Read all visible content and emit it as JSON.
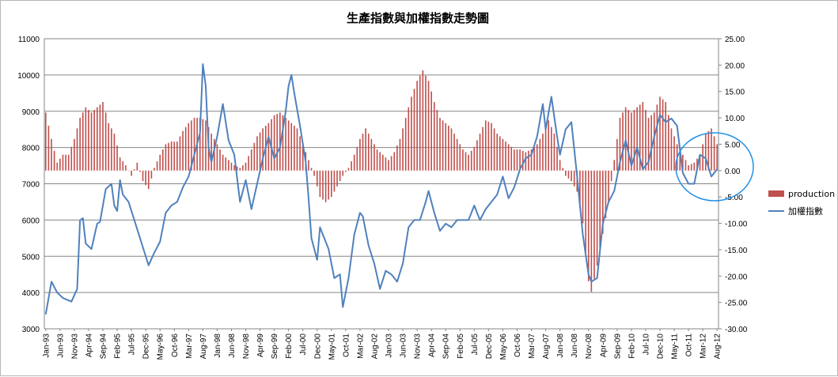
{
  "chart_data": {
    "type": "bar+line",
    "title": "生產指數與加權指數走勢圖",
    "left_axis": {
      "min": 3000,
      "max": 11000,
      "step": 1000,
      "series": "加權指數"
    },
    "right_axis": {
      "min": -30,
      "max": 25,
      "step": 5,
      "series": "production",
      "decimals": 2
    },
    "x_axis": {
      "start": "1993-01",
      "end": "2012-08",
      "tick_every_months": 5,
      "rotation": -90
    },
    "gridlines": true,
    "legend": {
      "position": "right",
      "entries": [
        {
          "name": "production",
          "kind": "bar",
          "color": "#c0504d"
        },
        {
          "name": "加權指數",
          "kind": "line",
          "color": "#4f81bd"
        }
      ]
    },
    "annotations": [
      {
        "kind": "ellipse",
        "color": "#1f8fe6",
        "around": "2012 data"
      }
    ],
    "series": [
      {
        "name": "加權指數",
        "axis": "left",
        "color": "#4f81bd",
        "anchors": [
          [
            "1993-01",
            3400
          ],
          [
            "1993-03",
            4300
          ],
          [
            "1993-05",
            4000
          ],
          [
            "1993-07",
            3850
          ],
          [
            "1993-10",
            3750
          ],
          [
            "1993-12",
            4100
          ],
          [
            "1994-01",
            5990
          ],
          [
            "1994-02",
            6050
          ],
          [
            "1994-03",
            5350
          ],
          [
            "1994-05",
            5200
          ],
          [
            "1994-07",
            5900
          ],
          [
            "1994-08",
            5950
          ],
          [
            "1994-10",
            6850
          ],
          [
            "1994-12",
            7000
          ],
          [
            "1995-01",
            6400
          ],
          [
            "1995-02",
            6250
          ],
          [
            "1995-03",
            7100
          ],
          [
            "1995-04",
            6700
          ],
          [
            "1995-06",
            6500
          ],
          [
            "1995-08",
            6000
          ],
          [
            "1995-11",
            5250
          ],
          [
            "1996-01",
            4750
          ],
          [
            "1996-03",
            5100
          ],
          [
            "1996-05",
            5400
          ],
          [
            "1996-07",
            6200
          ],
          [
            "1996-09",
            6400
          ],
          [
            "1996-11",
            6500
          ],
          [
            "1997-01",
            6900
          ],
          [
            "1997-03",
            7200
          ],
          [
            "1997-05",
            7800
          ],
          [
            "1997-07",
            8400
          ],
          [
            "1997-08",
            10300
          ],
          [
            "1997-09",
            9700
          ],
          [
            "1997-10",
            8000
          ],
          [
            "1997-11",
            7600
          ],
          [
            "1998-01",
            8300
          ],
          [
            "1998-03",
            9200
          ],
          [
            "1998-05",
            8200
          ],
          [
            "1998-07",
            7800
          ],
          [
            "1998-09",
            6500
          ],
          [
            "1998-11",
            7100
          ],
          [
            "1999-01",
            6300
          ],
          [
            "1999-03",
            7000
          ],
          [
            "1999-05",
            7700
          ],
          [
            "1999-07",
            8300
          ],
          [
            "1999-09",
            7700
          ],
          [
            "1999-11",
            8000
          ],
          [
            "2000-01",
            9000
          ],
          [
            "2000-02",
            9700
          ],
          [
            "2000-03",
            10000
          ],
          [
            "2000-04",
            9500
          ],
          [
            "2000-06",
            8600
          ],
          [
            "2000-08",
            7600
          ],
          [
            "2000-09",
            6600
          ],
          [
            "2000-10",
            5500
          ],
          [
            "2000-12",
            4900
          ],
          [
            "2001-01",
            5800
          ],
          [
            "2001-02",
            5600
          ],
          [
            "2001-04",
            5200
          ],
          [
            "2001-06",
            4400
          ],
          [
            "2001-08",
            4500
          ],
          [
            "2001-09",
            3600
          ],
          [
            "2001-11",
            4400
          ],
          [
            "2002-01",
            5600
          ],
          [
            "2002-03",
            6200
          ],
          [
            "2002-04",
            6100
          ],
          [
            "2002-06",
            5300
          ],
          [
            "2002-08",
            4800
          ],
          [
            "2002-10",
            4100
          ],
          [
            "2002-12",
            4600
          ],
          [
            "2003-02",
            4500
          ],
          [
            "2003-04",
            4300
          ],
          [
            "2003-06",
            4800
          ],
          [
            "2003-08",
            5800
          ],
          [
            "2003-10",
            6000
          ],
          [
            "2003-12",
            6000
          ],
          [
            "2004-02",
            6500
          ],
          [
            "2004-03",
            6800
          ],
          [
            "2004-05",
            6200
          ],
          [
            "2004-07",
            5700
          ],
          [
            "2004-09",
            5900
          ],
          [
            "2004-11",
            5800
          ],
          [
            "2005-01",
            6000
          ],
          [
            "2005-03",
            6000
          ],
          [
            "2005-05",
            6000
          ],
          [
            "2005-07",
            6400
          ],
          [
            "2005-09",
            6000
          ],
          [
            "2005-11",
            6300
          ],
          [
            "2006-01",
            6500
          ],
          [
            "2006-03",
            6700
          ],
          [
            "2006-05",
            7200
          ],
          [
            "2006-07",
            6600
          ],
          [
            "2006-09",
            6900
          ],
          [
            "2006-11",
            7400
          ],
          [
            "2007-01",
            7700
          ],
          [
            "2007-03",
            7800
          ],
          [
            "2007-05",
            8300
          ],
          [
            "2007-07",
            9200
          ],
          [
            "2007-08",
            8500
          ],
          [
            "2007-10",
            9400
          ],
          [
            "2007-12",
            8300
          ],
          [
            "2008-01",
            7800
          ],
          [
            "2008-03",
            8500
          ],
          [
            "2008-05",
            8700
          ],
          [
            "2008-07",
            7200
          ],
          [
            "2008-09",
            5600
          ],
          [
            "2008-11",
            4500
          ],
          [
            "2008-12",
            4300
          ],
          [
            "2009-02",
            4400
          ],
          [
            "2009-04",
            5900
          ],
          [
            "2009-06",
            6500
          ],
          [
            "2009-08",
            6800
          ],
          [
            "2009-10",
            7600
          ],
          [
            "2009-12",
            8200
          ],
          [
            "2010-02",
            7500
          ],
          [
            "2010-04",
            8000
          ],
          [
            "2010-06",
            7400
          ],
          [
            "2010-08",
            7600
          ],
          [
            "2010-10",
            8300
          ],
          [
            "2010-12",
            8900
          ],
          [
            "2011-02",
            8700
          ],
          [
            "2011-04",
            8800
          ],
          [
            "2011-06",
            8600
          ],
          [
            "2011-08",
            7300
          ],
          [
            "2011-10",
            7000
          ],
          [
            "2011-12",
            7000
          ],
          [
            "2012-02",
            7800
          ],
          [
            "2012-04",
            7700
          ],
          [
            "2012-06",
            7200
          ],
          [
            "2012-08",
            7400
          ]
        ]
      },
      {
        "name": "production",
        "axis": "right",
        "color": "#c0504d",
        "anchors": [
          [
            "1993-01",
            11
          ],
          [
            "1993-03",
            6
          ],
          [
            "1993-05",
            1.5
          ],
          [
            "1993-07",
            3
          ],
          [
            "1993-09",
            3
          ],
          [
            "1993-11",
            6
          ],
          [
            "1994-01",
            10
          ],
          [
            "1994-03",
            12
          ],
          [
            "1994-05",
            11
          ],
          [
            "1994-07",
            12
          ],
          [
            "1994-09",
            13
          ],
          [
            "1994-11",
            9
          ],
          [
            "1995-01",
            7
          ],
          [
            "1995-03",
            2.5
          ],
          [
            "1995-05",
            1
          ],
          [
            "1995-07",
            -1
          ],
          [
            "1995-09",
            1.5
          ],
          [
            "1995-11",
            -2
          ],
          [
            "1996-01",
            -3.5
          ],
          [
            "1996-03",
            0.5
          ],
          [
            "1996-05",
            3
          ],
          [
            "1996-07",
            5
          ],
          [
            "1996-09",
            5.5
          ],
          [
            "1996-11",
            5.5
          ],
          [
            "1997-01",
            7.5
          ],
          [
            "1997-03",
            9
          ],
          [
            "1997-05",
            10
          ],
          [
            "1997-07",
            10
          ],
          [
            "1997-09",
            9.5
          ],
          [
            "1997-11",
            7
          ],
          [
            "1998-01",
            5
          ],
          [
            "1998-03",
            3
          ],
          [
            "1998-05",
            2
          ],
          [
            "1998-07",
            1
          ],
          [
            "1998-09",
            0.5
          ],
          [
            "1998-11",
            1.5
          ],
          [
            "1999-01",
            4
          ],
          [
            "1999-03",
            6.5
          ],
          [
            "1999-05",
            8
          ],
          [
            "1999-07",
            9
          ],
          [
            "1999-09",
            10.5
          ],
          [
            "1999-11",
            11
          ],
          [
            "2000-01",
            10
          ],
          [
            "2000-03",
            9
          ],
          [
            "2000-05",
            8
          ],
          [
            "2000-07",
            5
          ],
          [
            "2000-09",
            2
          ],
          [
            "2000-11",
            -1
          ],
          [
            "2001-01",
            -5
          ],
          [
            "2001-03",
            -6
          ],
          [
            "2001-05",
            -5
          ],
          [
            "2001-07",
            -3
          ],
          [
            "2001-09",
            -1
          ],
          [
            "2001-11",
            0.5
          ],
          [
            "2002-01",
            3
          ],
          [
            "2002-03",
            6
          ],
          [
            "2002-05",
            8
          ],
          [
            "2002-07",
            6
          ],
          [
            "2002-09",
            4
          ],
          [
            "2002-11",
            3
          ],
          [
            "2003-01",
            2
          ],
          [
            "2003-03",
            3.5
          ],
          [
            "2003-05",
            6
          ],
          [
            "2003-07",
            10
          ],
          [
            "2003-09",
            14
          ],
          [
            "2003-11",
            17
          ],
          [
            "2004-01",
            19
          ],
          [
            "2004-03",
            17
          ],
          [
            "2004-05",
            13
          ],
          [
            "2004-07",
            10
          ],
          [
            "2004-09",
            9
          ],
          [
            "2004-11",
            8
          ],
          [
            "2005-01",
            6
          ],
          [
            "2005-03",
            4
          ],
          [
            "2005-05",
            3
          ],
          [
            "2005-07",
            4.5
          ],
          [
            "2005-09",
            7
          ],
          [
            "2005-11",
            9.5
          ],
          [
            "2006-01",
            9
          ],
          [
            "2006-03",
            7
          ],
          [
            "2006-05",
            6
          ],
          [
            "2006-07",
            5
          ],
          [
            "2006-09",
            4
          ],
          [
            "2006-11",
            4
          ],
          [
            "2007-01",
            3.5
          ],
          [
            "2007-03",
            4
          ],
          [
            "2007-05",
            5
          ],
          [
            "2007-07",
            7
          ],
          [
            "2007-09",
            9.5
          ],
          [
            "2007-11",
            7
          ],
          [
            "2008-01",
            2
          ],
          [
            "2008-03",
            -1
          ],
          [
            "2008-05",
            -2
          ],
          [
            "2008-07",
            -4
          ],
          [
            "2008-09",
            -10
          ],
          [
            "2008-11",
            -21
          ],
          [
            "2008-12",
            -23
          ],
          [
            "2009-02",
            -18
          ],
          [
            "2009-04",
            -12
          ],
          [
            "2009-06",
            -6
          ],
          [
            "2009-08",
            2
          ],
          [
            "2009-10",
            10
          ],
          [
            "2009-12",
            12
          ],
          [
            "2010-02",
            11
          ],
          [
            "2010-04",
            12
          ],
          [
            "2010-06",
            13
          ],
          [
            "2010-08",
            10
          ],
          [
            "2010-10",
            11
          ],
          [
            "2010-12",
            14
          ],
          [
            "2011-02",
            13
          ],
          [
            "2011-04",
            8
          ],
          [
            "2011-06",
            5
          ],
          [
            "2011-08",
            3
          ],
          [
            "2011-10",
            1
          ],
          [
            "2011-12",
            1.5
          ],
          [
            "2012-02",
            3
          ],
          [
            "2012-04",
            7
          ],
          [
            "2012-06",
            8
          ],
          [
            "2012-08",
            5
          ]
        ]
      }
    ]
  }
}
